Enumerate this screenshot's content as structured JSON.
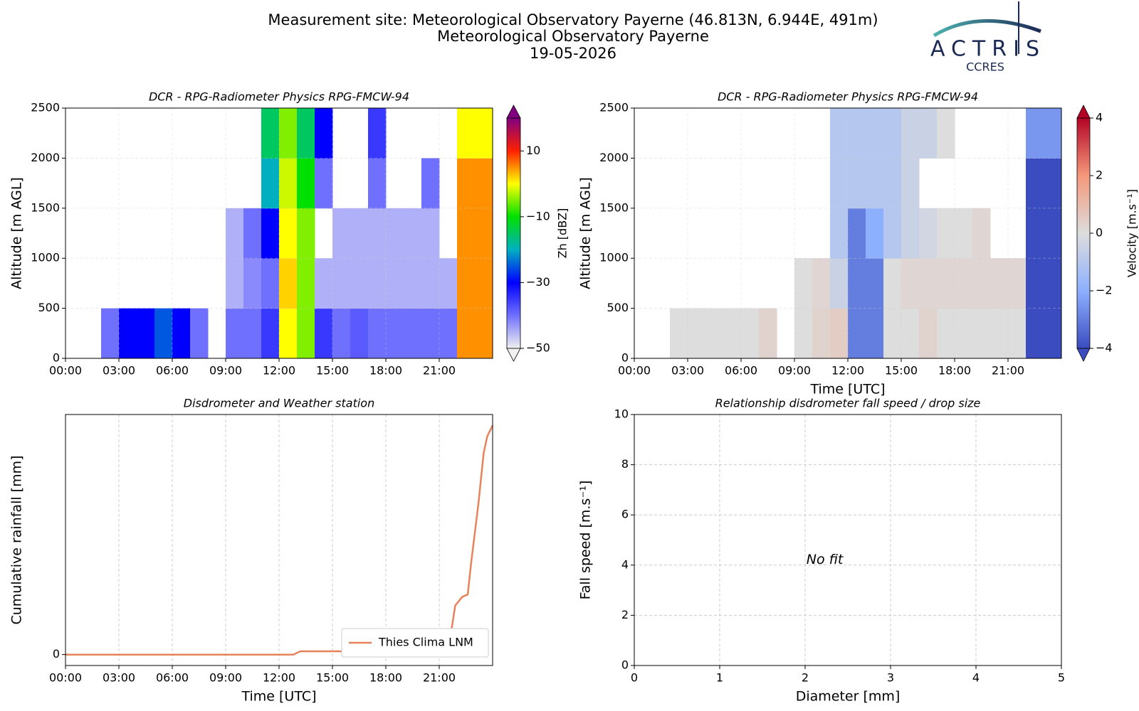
{
  "header": {
    "title": [
      "Measurement site: Meteorological Observatory Payerne (46.813N, 6.944E, 491m)",
      "Meteorological Observatory Payerne",
      "19-05-2026"
    ]
  },
  "logo": {
    "name": "ACTRIS",
    "subtitle": "CCRES"
  },
  "chart_data": [
    {
      "type": "heatmap",
      "title": "DCR - RPG-Radiometer Physics RPG-FMCW-94",
      "ylabel": "Altitude [m AGL]",
      "xbins": [
        0,
        1,
        2,
        3,
        4,
        5,
        6,
        7,
        8,
        9,
        10,
        11,
        12,
        13,
        14,
        15,
        16,
        17,
        18,
        19,
        20,
        21,
        22,
        23,
        24
      ],
      "ybins": [
        0,
        500,
        1000,
        1500,
        2000,
        2500
      ],
      "values": [
        [
          null,
          null,
          -40,
          -30,
          -30,
          -25,
          -30,
          -40,
          null,
          -40,
          -40,
          -35,
          0,
          -5,
          -35,
          -40,
          -38,
          -40,
          -40,
          -40,
          -40,
          -40,
          5,
          5
        ],
        [
          null,
          null,
          null,
          null,
          null,
          null,
          null,
          null,
          null,
          -45,
          -42,
          -40,
          2,
          -5,
          -45,
          -45,
          -45,
          -45,
          -45,
          -45,
          -45,
          -45,
          5,
          5
        ],
        [
          null,
          null,
          null,
          null,
          null,
          null,
          null,
          null,
          null,
          -45,
          -40,
          -30,
          0,
          -5,
          null,
          -45,
          -45,
          -45,
          -45,
          -45,
          -45,
          null,
          5,
          5
        ],
        [
          null,
          null,
          null,
          null,
          null,
          null,
          null,
          null,
          null,
          null,
          null,
          -20,
          -2,
          -10,
          -40,
          null,
          null,
          -40,
          null,
          null,
          -40,
          null,
          5,
          5
        ],
        [
          null,
          null,
          null,
          null,
          null,
          null,
          null,
          null,
          null,
          null,
          null,
          -15,
          -5,
          -15,
          -30,
          null,
          null,
          -35,
          null,
          null,
          null,
          null,
          0,
          0
        ]
      ],
      "xlim": [
        0,
        24
      ],
      "xticks": [
        {
          "value": 0,
          "label": "00:00"
        },
        {
          "value": 3,
          "label": "03:00"
        },
        {
          "value": 6,
          "label": "06:00"
        },
        {
          "value": 9,
          "label": "09:00"
        },
        {
          "value": 12,
          "label": "12:00"
        },
        {
          "value": 15,
          "label": "15:00"
        },
        {
          "value": 18,
          "label": "18:00"
        },
        {
          "value": 21,
          "label": "21:00"
        }
      ],
      "ylim": [
        0,
        2500
      ],
      "yticks": [
        0,
        500,
        1000,
        1500,
        2000,
        2500
      ],
      "grid": true,
      "colorbar": {
        "label": "Zh [dBZ]",
        "lim": [
          -50,
          20
        ],
        "ticks": [
          10,
          {
            "value": -10,
            "label": "−10"
          },
          {
            "value": -30,
            "label": "−30"
          },
          {
            "value": -50,
            "label": "−50"
          }
        ],
        "colors": [
          "#f0f0f0",
          "#7070ff",
          "#0000ff",
          "#00b0c0",
          "#00e000",
          "#ffff00",
          "#ff2000",
          "#800080"
        ]
      }
    },
    {
      "type": "heatmap",
      "title": "DCR - RPG-Radiometer Physics RPG-FMCW-94",
      "ylabel": "Altitude [m AGL]",
      "xlabel": "Time [UTC]",
      "xbins": [
        0,
        1,
        2,
        3,
        4,
        5,
        6,
        7,
        8,
        9,
        10,
        11,
        12,
        13,
        14,
        15,
        16,
        17,
        18,
        19,
        20,
        21,
        22,
        23,
        24
      ],
      "ybins": [
        0,
        500,
        1000,
        1500,
        2000,
        2500
      ],
      "values": [
        [
          null,
          null,
          0,
          0,
          0,
          0,
          0,
          0.3,
          null,
          0,
          0.3,
          0.5,
          -3,
          -3,
          0,
          0,
          0.3,
          0,
          0,
          0,
          0,
          0,
          -4,
          -4
        ],
        [
          null,
          null,
          null,
          null,
          null,
          null,
          null,
          null,
          null,
          0,
          0.2,
          -0.5,
          -3,
          -3,
          0,
          0.2,
          0.2,
          0.2,
          0.2,
          0.2,
          0.2,
          0.2,
          -4,
          -4
        ],
        [
          null,
          null,
          null,
          null,
          null,
          null,
          null,
          null,
          null,
          null,
          null,
          -1,
          -3,
          -2,
          -1,
          -0.5,
          -0.3,
          0,
          0,
          0.2,
          null,
          null,
          -4,
          -4
        ],
        [
          null,
          null,
          null,
          null,
          null,
          null,
          null,
          null,
          null,
          null,
          null,
          -1,
          -1,
          -1,
          -1,
          -0.5,
          null,
          null,
          null,
          null,
          null,
          null,
          -4,
          -4
        ],
        [
          null,
          null,
          null,
          null,
          null,
          null,
          null,
          null,
          null,
          null,
          null,
          -1,
          -1,
          -1,
          -1,
          -0.5,
          -0.5,
          0,
          null,
          null,
          null,
          null,
          -2.5,
          -2.5
        ]
      ],
      "xlim": [
        0,
        24
      ],
      "xticks": [
        {
          "value": 0,
          "label": "00:00"
        },
        {
          "value": 3,
          "label": "03:00"
        },
        {
          "value": 6,
          "label": "06:00"
        },
        {
          "value": 9,
          "label": "09:00"
        },
        {
          "value": 12,
          "label": "12:00"
        },
        {
          "value": 15,
          "label": "15:00"
        },
        {
          "value": 18,
          "label": "18:00"
        },
        {
          "value": 21,
          "label": "21:00"
        }
      ],
      "ylim": [
        0,
        2500
      ],
      "yticks": [
        0,
        500,
        1000,
        1500,
        2000,
        2500
      ],
      "grid": true,
      "colorbar": {
        "label": "Velocity [m.s⁻¹]",
        "lim": [
          -4,
          4
        ],
        "ticks": [
          4,
          2,
          0,
          {
            "value": -2,
            "label": "−2"
          },
          {
            "value": -4,
            "label": "−4"
          }
        ],
        "colors": [
          "#3b4cc0",
          "#8db0fe",
          "#dddddd",
          "#f4987a",
          "#b40426"
        ]
      }
    },
    {
      "type": "line",
      "title": "Disdrometer and Weather station",
      "ylabel": "Cumulative rainfall [mm]",
      "xlabel": "Time [UTC]",
      "series": [
        {
          "name": "Thies Clima LNM",
          "color": "#e8825a",
          "x": [
            0,
            12.8,
            13.2,
            16,
            21.5,
            21.9,
            22.3,
            22.6,
            22.8,
            23.2,
            23.5,
            23.7,
            24
          ],
          "values": [
            0,
            0,
            0.03,
            0.03,
            0.03,
            0.45,
            0.53,
            0.55,
            0.85,
            1.38,
            1.85,
            2.0,
            2.1
          ]
        }
      ],
      "xlim": [
        0,
        24
      ],
      "xticks": [
        {
          "value": 0,
          "label": "00:00"
        },
        {
          "value": 3,
          "label": "03:00"
        },
        {
          "value": 6,
          "label": "06:00"
        },
        {
          "value": 9,
          "label": "09:00"
        },
        {
          "value": 12,
          "label": "12:00"
        },
        {
          "value": 15,
          "label": "15:00"
        },
        {
          "value": 18,
          "label": "18:00"
        },
        {
          "value": 21,
          "label": "21:00"
        }
      ],
      "ylim": [
        -0.1,
        2.2
      ],
      "yticks": [
        0
      ],
      "grid": "x",
      "legend": "lower right"
    },
    {
      "type": "scatter",
      "title": "Relationship disdrometer fall speed / drop size",
      "ylabel": "Fall speed [m.s⁻¹]",
      "xlabel": "Diameter [mm]",
      "annotation": "No fit",
      "xlim": [
        0,
        5
      ],
      "xticks": [
        0,
        1,
        2,
        3,
        4,
        5
      ],
      "ylim": [
        0,
        10
      ],
      "yticks": [
        0,
        2,
        4,
        6,
        8,
        10
      ],
      "grid": "both"
    }
  ]
}
